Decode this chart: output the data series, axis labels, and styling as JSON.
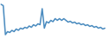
{
  "y_values": [
    85,
    82,
    15,
    22,
    20,
    25,
    22,
    28,
    25,
    30,
    28,
    32,
    30,
    35,
    32,
    38,
    35,
    40,
    38,
    75,
    30,
    45,
    42,
    48,
    45,
    52,
    48,
    52,
    48,
    52,
    48,
    44,
    46,
    42,
    44,
    40,
    42,
    38,
    40,
    36,
    38,
    34,
    36,
    32,
    34,
    30,
    32,
    28,
    30
  ],
  "line_color": "#4a8bbf",
  "bg_color": "#ffffff",
  "linewidth": 1.1
}
